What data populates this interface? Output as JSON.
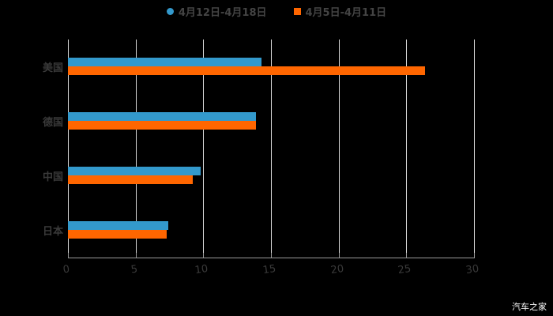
{
  "chart_data": {
    "type": "bar",
    "orientation": "horizontal",
    "title": "",
    "xlabel": "",
    "ylabel": "",
    "categories": [
      "美国",
      "德国",
      "中国",
      "日本"
    ],
    "series": [
      {
        "name": "4月12日-4月18日",
        "color": "#3399cc",
        "values": [
          14.3,
          13.9,
          9.8,
          7.4
        ]
      },
      {
        "name": "4月5日-4月11日",
        "color": "#ff6600",
        "values": [
          26.4,
          13.9,
          9.2,
          7.3
        ]
      }
    ],
    "xlim": [
      0,
      30
    ],
    "xticks": [
      "0",
      "5",
      "10",
      "15",
      "20",
      "25",
      "30"
    ],
    "grid": true,
    "legend_position": "top"
  },
  "legend": [
    {
      "label": "4月12日-4月18日",
      "color": "#3399cc",
      "marker": "circle"
    },
    {
      "label": "4月5日-4月11日",
      "color": "#ff6600",
      "marker": "square"
    }
  ],
  "watermark": "汽车之家"
}
